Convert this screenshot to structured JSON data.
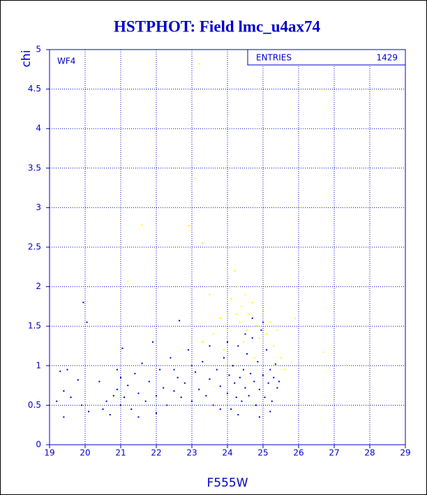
{
  "chart_data": {
    "type": "scatter",
    "title": "HSTPHOT: Field lmc_u4ax74",
    "x_label": "F555W",
    "y_label": "chi",
    "panel_label": "WF4",
    "entries": {
      "label": "ENTRIES",
      "value": "1429"
    },
    "xlim": [
      19,
      29
    ],
    "ylim": [
      0,
      5
    ],
    "xticks": [
      19,
      20,
      21,
      22,
      23,
      24,
      25,
      26,
      27,
      28,
      29
    ],
    "yticks": [
      0,
      0.5,
      1,
      1.5,
      2,
      2.5,
      3,
      3.5,
      4,
      4.5,
      5
    ],
    "grid": true,
    "series": [
      {
        "color": "#0000cc",
        "x": [
          19.2,
          19.3,
          19.4,
          19.5,
          19.4,
          19.6,
          19.8,
          19.9,
          19.95,
          20.05,
          20.1,
          20.4,
          20.6,
          20.7,
          20.8,
          20.9,
          21.0,
          21.05,
          21.1,
          21.2,
          21.3,
          21.4,
          21.5,
          21.6,
          21.7,
          21.8,
          21.9,
          22.0,
          22.1,
          22.2,
          22.3,
          22.4,
          22.5,
          22.6,
          22.65,
          22.7,
          22.8,
          22.9,
          23.0,
          23.1,
          23.2,
          23.3,
          23.4,
          23.5,
          23.6,
          23.7,
          23.8,
          23.9,
          24.0,
          24.05,
          24.1,
          24.15,
          24.2,
          24.25,
          24.3,
          24.35,
          24.4,
          24.45,
          24.5,
          24.55,
          24.6,
          24.65,
          24.7,
          24.75,
          24.8,
          24.85,
          24.9,
          24.95,
          25.0,
          25.05,
          25.1,
          25.15,
          25.2,
          25.25,
          25.3,
          25.35,
          25.4,
          25.45,
          23.5,
          22.0,
          21.0,
          20.9,
          24.0,
          24.5,
          25.0,
          24.7,
          23.8,
          24.3,
          25.2,
          24.9,
          23.0,
          22.5,
          21.5,
          20.5
        ],
        "y": [
          0.55,
          0.93,
          0.35,
          0.95,
          0.68,
          0.6,
          0.82,
          0.5,
          1.8,
          1.55,
          0.42,
          0.8,
          0.55,
          0.38,
          0.62,
          0.7,
          0.85,
          1.22,
          0.6,
          0.75,
          0.45,
          0.9,
          0.65,
          1.03,
          0.55,
          0.8,
          1.3,
          0.62,
          0.95,
          0.72,
          0.5,
          1.1,
          0.68,
          0.85,
          1.57,
          0.6,
          0.78,
          1.2,
          0.55,
          0.92,
          0.7,
          1.05,
          0.62,
          0.83,
          0.5,
          0.95,
          0.74,
          1.1,
          0.65,
          0.88,
          0.45,
          1.0,
          0.78,
          0.6,
          1.25,
          0.85,
          0.55,
          0.95,
          0.72,
          1.15,
          0.62,
          0.9,
          1.35,
          0.8,
          0.5,
          1.05,
          0.7,
          1.45,
          0.88,
          0.6,
          1.2,
          0.78,
          0.95,
          0.55,
          0.85,
          1.02,
          0.72,
          0.8,
          1.25,
          0.4,
          0.5,
          0.95,
          1.3,
          1.4,
          1.55,
          1.6,
          0.45,
          0.38,
          0.42,
          0.35,
          1.0,
          0.95,
          0.35,
          0.45
        ]
      },
      {
        "color": "#ffff00",
        "x": [
          23.2,
          23.1,
          21.6,
          22.9,
          23.3,
          21.2,
          26.7,
          25.9,
          24.2,
          24.3,
          24.1,
          24.4,
          24.5,
          24.6,
          24.7,
          24.35,
          24.55,
          24.8,
          24.9,
          25.0,
          25.1,
          25.3,
          25.5,
          25.2,
          23.8,
          23.6,
          23.5,
          23.9,
          24.0,
          24.25,
          24.45,
          25.6,
          25.8,
          23.3,
          24.75,
          25.4
        ],
        "y": [
          4.82,
          3.37,
          2.78,
          2.77,
          2.55,
          2.07,
          1.17,
          1.6,
          2.2,
          2.0,
          1.85,
          1.75,
          1.9,
          1.65,
          1.8,
          1.55,
          1.45,
          1.5,
          1.35,
          1.7,
          1.4,
          1.25,
          1.1,
          1.55,
          1.6,
          1.4,
          1.9,
          1.2,
          1.45,
          1.65,
          1.3,
          0.95,
          1.05,
          1.3,
          1.1,
          1.45
        ]
      }
    ]
  }
}
